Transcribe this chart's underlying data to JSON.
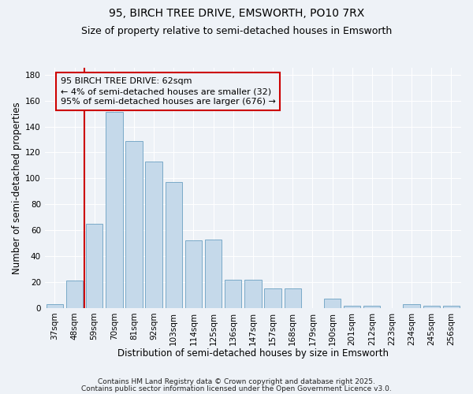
{
  "title_line1": "95, BIRCH TREE DRIVE, EMSWORTH, PO10 7RX",
  "title_line2": "Size of property relative to semi-detached houses in Emsworth",
  "xlabel": "Distribution of semi-detached houses by size in Emsworth",
  "ylabel": "Number of semi-detached properties",
  "categories": [
    "37sqm",
    "48sqm",
    "59sqm",
    "70sqm",
    "81sqm",
    "92sqm",
    "103sqm",
    "114sqm",
    "125sqm",
    "136sqm",
    "147sqm",
    "157sqm",
    "168sqm",
    "179sqm",
    "190sqm",
    "201sqm",
    "212sqm",
    "223sqm",
    "234sqm",
    "245sqm",
    "256sqm"
  ],
  "values": [
    3,
    21,
    65,
    151,
    129,
    113,
    97,
    52,
    53,
    22,
    22,
    15,
    15,
    0,
    7,
    2,
    2,
    0,
    3,
    2,
    2
  ],
  "bar_color": "#c5d9ea",
  "bar_edge_color": "#7aaac8",
  "vline_x_index": 2,
  "vline_color": "#cc0000",
  "annotation_text_line1": "95 BIRCH TREE DRIVE: 62sqm",
  "annotation_text_line2": "← 4% of semi-detached houses are smaller (32)",
  "annotation_text_line3": "95% of semi-detached houses are larger (676) →",
  "footnote1": "Contains HM Land Registry data © Crown copyright and database right 2025.",
  "footnote2": "Contains public sector information licensed under the Open Government Licence v3.0.",
  "ylim": [
    0,
    185
  ],
  "background_color": "#eef2f7",
  "grid_color": "#ffffff",
  "title_fontsize": 10,
  "subtitle_fontsize": 9,
  "axis_label_fontsize": 8.5,
  "tick_fontsize": 7.5,
  "annotation_fontsize": 8,
  "footnote_fontsize": 6.5
}
